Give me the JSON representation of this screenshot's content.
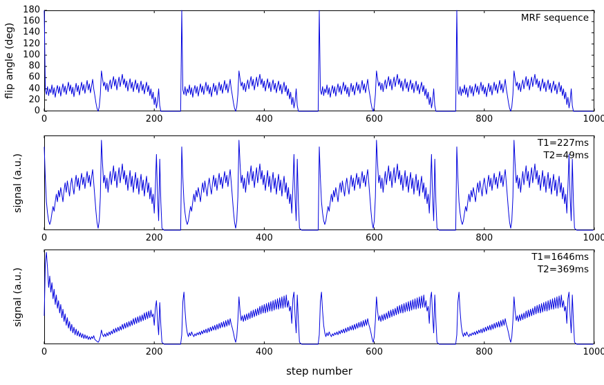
{
  "figure": {
    "xlabel": "step number",
    "line_color": "#0000dd",
    "frame_color": "#000000"
  },
  "chart_data": [
    {
      "type": "line",
      "ylabel": "flip angle (deg)",
      "annotation": "MRF sequence",
      "legend_position": "upper right",
      "grid": false,
      "x_range": [
        0,
        1000
      ],
      "y_range": [
        0,
        180
      ],
      "x_ticks": [
        0,
        200,
        400,
        600,
        800,
        1000
      ],
      "y_ticks": [
        0,
        20,
        40,
        60,
        80,
        100,
        120,
        140,
        160,
        180
      ],
      "x_step": 2,
      "segment_length": 250,
      "series_segments": [
        "flip_angle_pattern",
        "flip_angle_pattern",
        "flip_angle_pattern",
        "flip_angle_pattern"
      ]
    },
    {
      "type": "line",
      "ylabel": "signal (a.u.)",
      "annotation": "T1=227ms\nT2=49ms",
      "legend_position": "upper right",
      "grid": false,
      "x_range": [
        0,
        1000
      ],
      "y_range": [
        0,
        1
      ],
      "x_ticks": [
        0,
        200,
        400,
        600,
        800,
        1000
      ],
      "y_ticks": [],
      "x_step": 2,
      "segment_length": 250,
      "series_segments": [
        "signal_t1_227",
        "signal_t1_227",
        "signal_t1_227",
        "signal_t1_227"
      ]
    },
    {
      "type": "line",
      "ylabel": "signal (a.u.)",
      "annotation": "T1=1646ms\nT2=369ms",
      "legend_position": "upper right",
      "grid": false,
      "x_range": [
        0,
        1000
      ],
      "y_range": [
        0,
        1
      ],
      "x_ticks": [
        0,
        200,
        400,
        600,
        800,
        1000
      ],
      "y_ticks": [],
      "x_step": 2,
      "segment_length": 250,
      "series_segments": [
        "signal_t1_1646_first",
        "signal_t1_1646_repeat",
        "signal_t1_1646_repeat",
        "signal_t1_1646_repeat"
      ]
    }
  ],
  "segments": {
    "flip_angle_pattern": [
      180,
      38,
      30,
      44,
      28,
      40,
      33,
      47,
      30,
      42,
      25,
      38,
      46,
      32,
      44,
      27,
      39,
      49,
      34,
      45,
      30,
      42,
      52,
      36,
      47,
      31,
      43,
      26,
      39,
      50,
      35,
      46,
      29,
      41,
      52,
      37,
      48,
      32,
      44,
      55,
      38,
      49,
      33,
      45,
      57,
      40,
      28,
      15,
      5,
      0,
      8,
      30,
      72,
      58,
      45,
      52,
      38,
      50,
      35,
      47,
      56,
      40,
      52,
      62,
      45,
      57,
      38,
      50,
      61,
      44,
      56,
      66,
      48,
      58,
      42,
      54,
      36,
      48,
      58,
      41,
      52,
      35,
      47,
      56,
      39,
      50,
      33,
      45,
      54,
      37,
      48,
      31,
      43,
      52,
      35,
      46,
      28,
      40,
      22,
      34,
      12,
      25,
      6,
      18,
      40,
      10,
      0,
      0,
      0,
      0,
      0,
      0,
      0,
      0,
      0,
      0,
      0,
      0,
      0,
      0,
      0,
      0,
      0,
      0,
      0
    ],
    "signal_t1_227": [
      0.88,
      0.55,
      0.3,
      0.18,
      0.1,
      0.06,
      0.1,
      0.18,
      0.25,
      0.2,
      0.3,
      0.38,
      0.3,
      0.42,
      0.35,
      0.45,
      0.38,
      0.3,
      0.42,
      0.5,
      0.4,
      0.52,
      0.44,
      0.36,
      0.48,
      0.55,
      0.45,
      0.38,
      0.5,
      0.58,
      0.46,
      0.55,
      0.42,
      0.52,
      0.6,
      0.48,
      0.56,
      0.44,
      0.54,
      0.62,
      0.5,
      0.58,
      0.46,
      0.56,
      0.64,
      0.5,
      0.35,
      0.2,
      0.08,
      0.02,
      0.1,
      0.35,
      0.95,
      0.7,
      0.5,
      0.58,
      0.44,
      0.55,
      0.4,
      0.52,
      0.62,
      0.48,
      0.58,
      0.68,
      0.52,
      0.62,
      0.45,
      0.56,
      0.66,
      0.5,
      0.6,
      0.7,
      0.54,
      0.63,
      0.48,
      0.58,
      0.42,
      0.53,
      0.63,
      0.46,
      0.57,
      0.4,
      0.52,
      0.61,
      0.44,
      0.55,
      0.38,
      0.5,
      0.59,
      0.42,
      0.53,
      0.36,
      0.48,
      0.57,
      0.4,
      0.5,
      0.33,
      0.45,
      0.28,
      0.38,
      0.18,
      0.45,
      0.8,
      0.35,
      0.1,
      0.75,
      0.3,
      0.02,
      0.01,
      0,
      0,
      0,
      0,
      0,
      0,
      0,
      0,
      0,
      0,
      0,
      0,
      0,
      0,
      0,
      0
    ],
    "signal_t1_1646_first": [
      0.3,
      0.85,
      0.97,
      0.8,
      0.6,
      0.72,
      0.55,
      0.65,
      0.48,
      0.58,
      0.42,
      0.52,
      0.38,
      0.46,
      0.33,
      0.42,
      0.28,
      0.37,
      0.24,
      0.32,
      0.2,
      0.28,
      0.17,
      0.24,
      0.14,
      0.21,
      0.12,
      0.18,
      0.1,
      0.16,
      0.09,
      0.14,
      0.08,
      0.12,
      0.07,
      0.11,
      0.06,
      0.1,
      0.06,
      0.09,
      0.05,
      0.08,
      0.05,
      0.08,
      0.06,
      0.09,
      0.05,
      0.04,
      0.03,
      0.02,
      0.04,
      0.08,
      0.15,
      0.1,
      0.08,
      0.11,
      0.08,
      0.12,
      0.09,
      0.13,
      0.1,
      0.14,
      0.11,
      0.16,
      0.12,
      0.17,
      0.13,
      0.18,
      0.14,
      0.19,
      0.15,
      0.21,
      0.16,
      0.22,
      0.17,
      0.23,
      0.18,
      0.24,
      0.19,
      0.25,
      0.2,
      0.27,
      0.21,
      0.28,
      0.22,
      0.29,
      0.23,
      0.3,
      0.24,
      0.31,
      0.25,
      0.33,
      0.26,
      0.34,
      0.27,
      0.35,
      0.28,
      0.36,
      0.29,
      0.32,
      0.2,
      0.38,
      0.46,
      0.25,
      0.1,
      0.44,
      0.2,
      0.02,
      0.01,
      0,
      0,
      0,
      0,
      0,
      0,
      0,
      0,
      0,
      0,
      0,
      0,
      0,
      0,
      0,
      0
    ],
    "signal_t1_1646_repeat": [
      0.1,
      0.45,
      0.55,
      0.35,
      0.2,
      0.12,
      0.08,
      0.12,
      0.09,
      0.13,
      0.1,
      0.08,
      0.11,
      0.09,
      0.12,
      0.1,
      0.13,
      0.1,
      0.14,
      0.11,
      0.15,
      0.12,
      0.16,
      0.12,
      0.17,
      0.13,
      0.18,
      0.14,
      0.19,
      0.15,
      0.2,
      0.15,
      0.21,
      0.16,
      0.22,
      0.17,
      0.23,
      0.18,
      0.24,
      0.18,
      0.25,
      0.19,
      0.26,
      0.2,
      0.27,
      0.21,
      0.17,
      0.12,
      0.06,
      0.02,
      0.08,
      0.25,
      0.5,
      0.35,
      0.25,
      0.3,
      0.24,
      0.31,
      0.25,
      0.32,
      0.26,
      0.33,
      0.27,
      0.35,
      0.28,
      0.36,
      0.29,
      0.37,
      0.3,
      0.38,
      0.31,
      0.4,
      0.32,
      0.41,
      0.33,
      0.42,
      0.33,
      0.43,
      0.34,
      0.44,
      0.35,
      0.45,
      0.35,
      0.46,
      0.36,
      0.47,
      0.37,
      0.48,
      0.37,
      0.49,
      0.38,
      0.5,
      0.38,
      0.51,
      0.39,
      0.52,
      0.39,
      0.46,
      0.35,
      0.4,
      0.22,
      0.48,
      0.55,
      0.3,
      0.12,
      0.52,
      0.25,
      0.02,
      0.01,
      0,
      0,
      0,
      0,
      0,
      0,
      0,
      0,
      0,
      0,
      0,
      0,
      0,
      0,
      0,
      0
    ]
  }
}
